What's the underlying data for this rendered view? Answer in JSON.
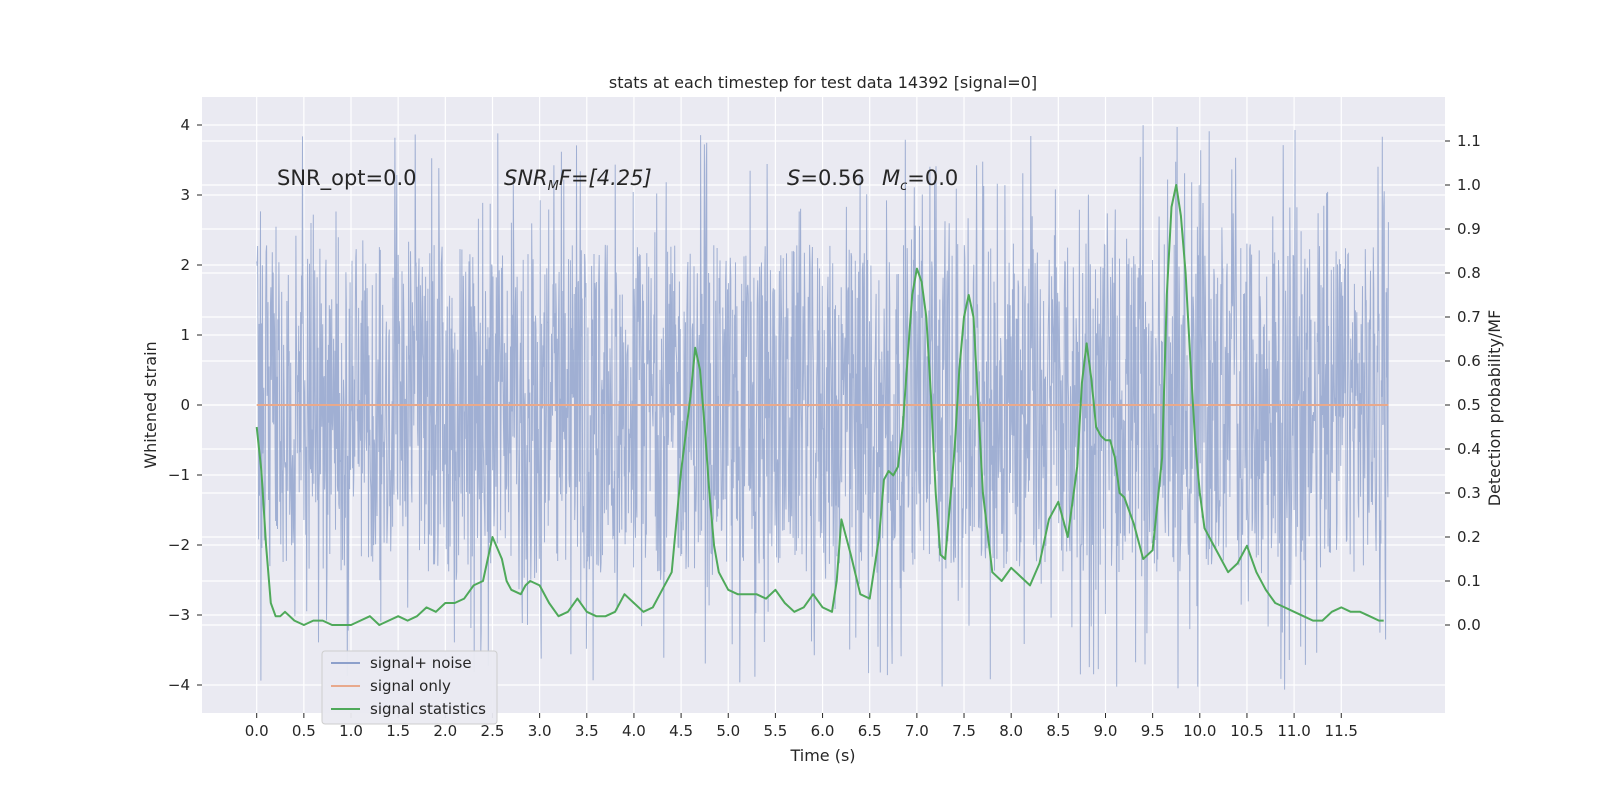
{
  "chart_data": {
    "type": "line",
    "title": "stats at each timestep for test data 14392 [signal=0]",
    "xlabel": "Time (s)",
    "ylabel_left": "Whitened strain",
    "ylabel_right": "Detection probability/MF",
    "xlim": [
      -0.58,
      12.6
    ],
    "ylim_left": [
      -4.4,
      4.4
    ],
    "ylim_right": [
      -0.2,
      1.2
    ],
    "grid": true,
    "legend_position": "lower-left",
    "x_ticks": [
      "0.0",
      "0.5",
      "1.0",
      "1.5",
      "2.0",
      "2.5",
      "3.0",
      "3.5",
      "4.0",
      "4.5",
      "5.0",
      "5.5",
      "6.0",
      "6.5",
      "7.0",
      "7.5",
      "8.0",
      "8.5",
      "9.0",
      "9.5",
      "10.0",
      "10.5",
      "11.0",
      "11.5"
    ],
    "y_ticks_left": [
      "4",
      "3",
      "2",
      "1",
      "0",
      "−1",
      "−2",
      "−3",
      "−4"
    ],
    "y_ticks_right": [
      "1.1",
      "1.0",
      "0.9",
      "0.8",
      "0.7",
      "0.6",
      "0.5",
      "0.4",
      "0.3",
      "0.2",
      "0.1",
      "0.0"
    ],
    "annotations": {
      "snr_opt": "SNR_opt=0.0",
      "snr_mf_sym": "SNR",
      "snr_mf_sub": "M",
      "snr_mf_rest": "F=[4.25]",
      "s_sym": "S",
      "s_val": "=0.56",
      "mc_sym": "M",
      "mc_sub": "c",
      "mc_val": "=0.0"
    },
    "series": [
      {
        "name": "signal+ noise",
        "color": "#8da0cb",
        "axis": "left",
        "style": "dense noise band",
        "x_range": [
          0.0,
          12.0
        ],
        "typical_range": [
          -2.4,
          2.3
        ],
        "peak_max": 4.0,
        "peak_min": -4.07
      },
      {
        "name": "signal only",
        "color": "#e8a98c",
        "axis": "left",
        "x": [
          0.0,
          12.0
        ],
        "y": [
          0.0,
          0.0
        ]
      },
      {
        "name": "signal statistics",
        "color": "#4fa95a",
        "axis": "right",
        "x": [
          0.0,
          0.05,
          0.1,
          0.15,
          0.2,
          0.25,
          0.3,
          0.4,
          0.5,
          0.6,
          0.7,
          0.8,
          0.9,
          1.0,
          1.1,
          1.2,
          1.3,
          1.4,
          1.5,
          1.6,
          1.7,
          1.8,
          1.9,
          2.0,
          2.1,
          2.2,
          2.3,
          2.4,
          2.5,
          2.6,
          2.65,
          2.7,
          2.8,
          2.85,
          2.9,
          3.0,
          3.1,
          3.2,
          3.3,
          3.4,
          3.5,
          3.6,
          3.7,
          3.8,
          3.9,
          4.0,
          4.1,
          4.2,
          4.3,
          4.4,
          4.5,
          4.6,
          4.65,
          4.7,
          4.75,
          4.8,
          4.85,
          4.9,
          5.0,
          5.1,
          5.2,
          5.3,
          5.4,
          5.5,
          5.6,
          5.7,
          5.8,
          5.9,
          6.0,
          6.1,
          6.15,
          6.2,
          6.3,
          6.4,
          6.5,
          6.6,
          6.65,
          6.7,
          6.75,
          6.8,
          6.85,
          6.9,
          6.95,
          7.0,
          7.05,
          7.1,
          7.15,
          7.2,
          7.25,
          7.3,
          7.4,
          7.45,
          7.5,
          7.55,
          7.6,
          7.65,
          7.7,
          7.8,
          7.9,
          8.0,
          8.1,
          8.2,
          8.3,
          8.4,
          8.5,
          8.6,
          8.7,
          8.75,
          8.8,
          8.85,
          8.9,
          8.95,
          9.0,
          9.05,
          9.1,
          9.15,
          9.2,
          9.3,
          9.4,
          9.5,
          9.6,
          9.65,
          9.7,
          9.75,
          9.8,
          9.85,
          9.9,
          9.95,
          10.0,
          10.05,
          10.1,
          10.2,
          10.3,
          10.4,
          10.5,
          10.6,
          10.7,
          10.8,
          10.9,
          11.0,
          11.1,
          11.2,
          11.3,
          11.4,
          11.5,
          11.6,
          11.7,
          11.8,
          11.9,
          11.95
        ],
        "y": [
          0.45,
          0.35,
          0.18,
          0.05,
          0.02,
          0.02,
          0.03,
          0.01,
          0.0,
          0.01,
          0.01,
          0.0,
          0.0,
          0.0,
          0.01,
          0.02,
          0.0,
          0.01,
          0.02,
          0.01,
          0.02,
          0.04,
          0.03,
          0.05,
          0.05,
          0.06,
          0.09,
          0.1,
          0.2,
          0.15,
          0.1,
          0.08,
          0.07,
          0.09,
          0.1,
          0.09,
          0.05,
          0.02,
          0.03,
          0.06,
          0.03,
          0.02,
          0.02,
          0.03,
          0.07,
          0.05,
          0.03,
          0.04,
          0.08,
          0.12,
          0.35,
          0.52,
          0.63,
          0.58,
          0.45,
          0.3,
          0.18,
          0.12,
          0.08,
          0.07,
          0.07,
          0.07,
          0.06,
          0.08,
          0.05,
          0.03,
          0.04,
          0.07,
          0.04,
          0.03,
          0.1,
          0.24,
          0.16,
          0.07,
          0.06,
          0.2,
          0.33,
          0.35,
          0.34,
          0.36,
          0.45,
          0.6,
          0.75,
          0.81,
          0.78,
          0.7,
          0.52,
          0.3,
          0.16,
          0.15,
          0.4,
          0.58,
          0.7,
          0.75,
          0.7,
          0.5,
          0.3,
          0.12,
          0.1,
          0.13,
          0.11,
          0.09,
          0.14,
          0.24,
          0.28,
          0.2,
          0.36,
          0.55,
          0.64,
          0.56,
          0.45,
          0.43,
          0.42,
          0.42,
          0.38,
          0.3,
          0.29,
          0.23,
          0.15,
          0.17,
          0.38,
          0.75,
          0.95,
          1.0,
          0.93,
          0.8,
          0.6,
          0.42,
          0.3,
          0.22,
          0.2,
          0.16,
          0.12,
          0.14,
          0.18,
          0.12,
          0.08,
          0.05,
          0.04,
          0.03,
          0.02,
          0.01,
          0.01,
          0.03,
          0.04,
          0.03,
          0.03,
          0.02,
          0.01,
          0.01
        ]
      }
    ]
  }
}
